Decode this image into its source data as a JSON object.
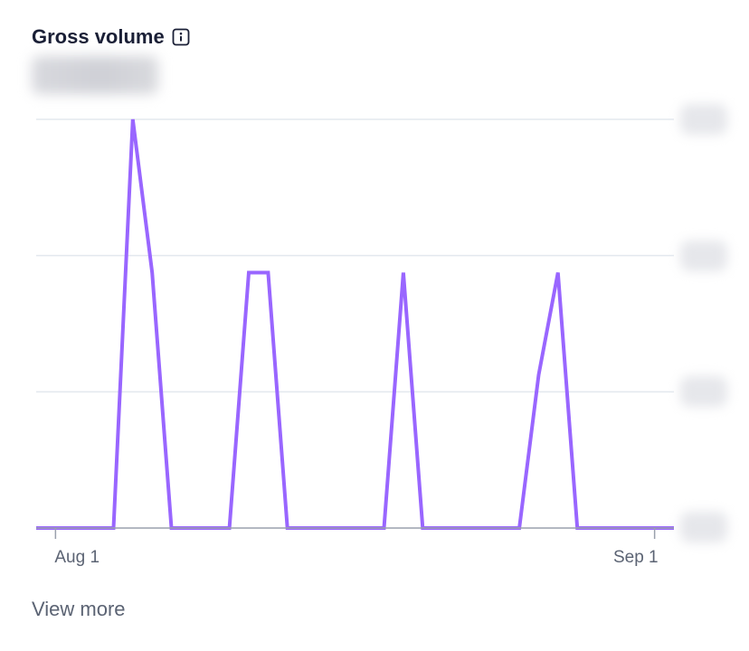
{
  "card": {
    "title": "Gross volume",
    "view_more": "View more",
    "info_icon": "info-icon"
  },
  "colors": {
    "line": "#9966ff",
    "grid": "#e3e8ee",
    "baseline": "#9aa1ad",
    "text": "#1a1f36",
    "muted": "#5b6373"
  },
  "chart_data": {
    "type": "line",
    "title": "Gross volume",
    "x_start": "Aug 1",
    "x_end": "Sep 1",
    "xticks": [
      "Aug 1",
      "Sep 1"
    ],
    "yticks_hidden": true,
    "ylim": [
      0,
      4
    ],
    "grid": true,
    "series": [
      {
        "x": [
          "2023-07-31",
          "2023-08-01",
          "2023-08-02",
          "2023-08-03",
          "2023-08-04",
          "2023-08-05",
          "2023-08-06",
          "2023-08-07",
          "2023-08-08",
          "2023-08-09",
          "2023-08-10",
          "2023-08-11",
          "2023-08-12",
          "2023-08-13",
          "2023-08-14",
          "2023-08-15",
          "2023-08-16",
          "2023-08-17",
          "2023-08-18",
          "2023-08-19",
          "2023-08-20",
          "2023-08-21",
          "2023-08-22",
          "2023-08-23",
          "2023-08-24",
          "2023-08-25",
          "2023-08-26",
          "2023-08-27",
          "2023-08-28",
          "2023-08-29",
          "2023-08-30",
          "2023-08-31",
          "2023-09-01",
          "2023-09-02"
        ],
        "values": [
          0,
          0,
          0,
          0,
          0,
          4,
          2.5,
          0,
          0,
          0,
          0,
          2.5,
          2.5,
          0,
          0,
          0,
          0,
          0,
          0,
          2.5,
          0,
          0,
          0,
          0,
          0,
          0,
          1.5,
          2.5,
          0,
          0,
          0,
          0,
          0,
          0
        ]
      }
    ]
  }
}
